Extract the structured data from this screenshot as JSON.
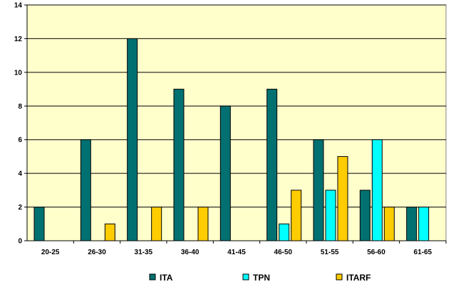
{
  "chart_data": {
    "type": "bar",
    "categories": [
      "20-25",
      "26-30",
      "31-35",
      "36-40",
      "41-45",
      "46-50",
      "51-55",
      "56-60",
      "61-65"
    ],
    "series": [
      {
        "name": "ITA",
        "color": "#007070",
        "values": [
          2,
          6,
          12,
          9,
          8,
          9,
          6,
          3,
          2
        ]
      },
      {
        "name": "TPN",
        "color": "#00FFFF",
        "values": [
          0,
          0,
          0,
          0,
          0,
          1,
          3,
          6,
          2
        ]
      },
      {
        "name": "ITARF",
        "color": "#FFCC00",
        "values": [
          0,
          1,
          2,
          2,
          0,
          3,
          5,
          2,
          0
        ]
      }
    ],
    "ylim": [
      0,
      14
    ],
    "yticks": [
      0,
      2,
      4,
      6,
      8,
      10,
      12,
      14
    ],
    "plot_background": "#FFFFCC",
    "grid": true,
    "legend_position": "bottom"
  }
}
